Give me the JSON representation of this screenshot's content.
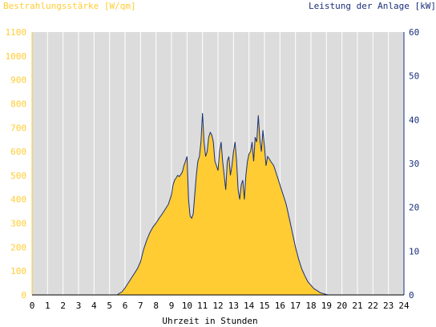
{
  "chart_data": {
    "type": "area",
    "title_left": "Bestrahlungsstärke [W/qm]",
    "title_right": "Leistung der Anlage [kW]",
    "xlabel": "Uhrzeit in Stunden",
    "xlim": [
      0,
      24
    ],
    "ylim_left": [
      0,
      1100
    ],
    "ylim_right": [
      0,
      60
    ],
    "x_ticks": [
      "0",
      "1",
      "2",
      "3",
      "4",
      "5",
      "6",
      "7",
      "8",
      "9",
      "10",
      "11",
      "12",
      "13",
      "14",
      "15",
      "16",
      "17",
      "18",
      "19",
      "20",
      "21",
      "22",
      "23",
      "24"
    ],
    "y_ticks_left": [
      "0",
      "100",
      "200",
      "300",
      "400",
      "500",
      "600",
      "700",
      "800",
      "900",
      "1000",
      "1100"
    ],
    "y_ticks_right": [
      "0",
      "10",
      "20",
      "30",
      "40",
      "50",
      "60"
    ],
    "colors": {
      "irradiance_fill": "#ffcc33",
      "power_line": "#1a2f7a",
      "plot_background": "#dcdcdc",
      "grid": "#ffffff",
      "left_axis": "#ffcc33",
      "right_axis": "#1a2f7a"
    },
    "grid": "vertical",
    "series": [
      {
        "axis": "left",
        "kind": "area",
        "x": [
          0,
          5.5,
          5.6,
          5.8,
          6.0,
          6.2,
          6.4,
          6.6,
          6.8,
          7.0,
          7.2,
          7.4,
          7.6,
          7.8,
          8.0,
          8.2,
          8.4,
          8.6,
          8.8,
          9.0,
          9.1,
          9.2,
          9.3,
          9.4,
          9.5,
          9.6,
          9.7,
          9.8,
          9.9,
          10.0,
          10.1,
          10.2,
          10.3,
          10.4,
          10.5,
          10.6,
          10.7,
          10.8,
          10.9,
          11.0,
          11.1,
          11.2,
          11.3,
          11.4,
          11.5,
          11.6,
          11.7,
          11.8,
          11.9,
          12.0,
          12.1,
          12.2,
          12.3,
          12.4,
          12.5,
          12.6,
          12.7,
          12.8,
          12.9,
          13.0,
          13.1,
          13.2,
          13.3,
          13.4,
          13.5,
          13.6,
          13.7,
          13.8,
          13.9,
          14.0,
          14.1,
          14.2,
          14.3,
          14.4,
          14.5,
          14.6,
          14.7,
          14.8,
          14.9,
          15.0,
          15.1,
          15.2,
          15.3,
          15.4,
          15.5,
          15.6,
          15.8,
          16.0,
          16.2,
          16.4,
          16.6,
          16.8,
          17.0,
          17.2,
          17.4,
          17.6,
          17.8,
          18.0,
          18.2,
          18.4,
          18.6,
          18.8,
          19.0,
          19.1,
          24
        ],
        "y": [
          0,
          0,
          5,
          12,
          30,
          50,
          70,
          90,
          110,
          140,
          190,
          230,
          260,
          285,
          300,
          320,
          340,
          360,
          380,
          420,
          460,
          480,
          490,
          500,
          495,
          505,
          515,
          540,
          560,
          580,
          400,
          330,
          320,
          340,
          420,
          500,
          560,
          580,
          640,
          720,
          640,
          580,
          600,
          660,
          680,
          670,
          640,
          560,
          540,
          520,
          600,
          640,
          560,
          500,
          440,
          560,
          580,
          500,
          540,
          600,
          640,
          560,
          440,
          400,
          460,
          480,
          400,
          500,
          560,
          590,
          600,
          640,
          560,
          660,
          640,
          770,
          650,
          600,
          690,
          620,
          540,
          580,
          570,
          560,
          550,
          540,
          500,
          460,
          420,
          380,
          320,
          260,
          200,
          150,
          110,
          80,
          55,
          40,
          25,
          18,
          10,
          5,
          2,
          0,
          0
        ]
      },
      {
        "axis": "right",
        "kind": "line",
        "x": [
          0,
          5.5,
          5.6,
          5.8,
          6.0,
          6.2,
          6.4,
          6.6,
          6.8,
          7.0,
          7.2,
          7.4,
          7.6,
          7.8,
          8.0,
          8.2,
          8.4,
          8.6,
          8.8,
          9.0,
          9.1,
          9.2,
          9.3,
          9.4,
          9.5,
          9.6,
          9.7,
          9.8,
          9.9,
          10.0,
          10.1,
          10.2,
          10.3,
          10.4,
          10.5,
          10.6,
          10.7,
          10.8,
          10.9,
          11.0,
          11.1,
          11.2,
          11.3,
          11.4,
          11.5,
          11.6,
          11.7,
          11.8,
          11.9,
          12.0,
          12.1,
          12.2,
          12.3,
          12.4,
          12.5,
          12.6,
          12.7,
          12.8,
          12.9,
          13.0,
          13.1,
          13.2,
          13.3,
          13.4,
          13.5,
          13.6,
          13.7,
          13.8,
          13.9,
          14.0,
          14.1,
          14.2,
          14.3,
          14.4,
          14.5,
          14.6,
          14.7,
          14.8,
          14.9,
          15.0,
          15.1,
          15.2,
          15.3,
          15.4,
          15.5,
          15.6,
          15.8,
          16.0,
          16.2,
          16.4,
          16.6,
          16.8,
          17.0,
          17.2,
          17.4,
          17.6,
          17.8,
          18.0,
          18.2,
          18.4,
          18.6,
          18.8,
          19.0,
          19.1,
          24
        ],
        "y": [
          0,
          0,
          0.3,
          0.7,
          1.6,
          2.7,
          3.8,
          4.9,
          6.0,
          7.6,
          10.4,
          12.5,
          14.2,
          15.5,
          16.4,
          17.5,
          18.5,
          19.6,
          20.7,
          22.9,
          25.1,
          26.2,
          26.7,
          27.3,
          27.0,
          27.5,
          28.1,
          29.5,
          30.5,
          31.6,
          21.8,
          18.0,
          17.5,
          18.5,
          22.9,
          27.3,
          30.5,
          31.6,
          34.9,
          41.5,
          34.9,
          31.6,
          32.7,
          36.0,
          37.1,
          36.5,
          34.9,
          30.5,
          29.5,
          28.4,
          32.7,
          34.9,
          30.5,
          27.3,
          24.0,
          30.5,
          31.6,
          27.3,
          29.5,
          32.7,
          34.9,
          30.5,
          24.0,
          21.8,
          25.1,
          26.2,
          21.8,
          27.3,
          30.5,
          32.2,
          32.7,
          34.9,
          30.5,
          36.0,
          34.9,
          41.0,
          35.5,
          32.7,
          37.6,
          33.8,
          29.5,
          31.6,
          31.1,
          30.5,
          30.0,
          29.5,
          27.3,
          25.1,
          22.9,
          20.7,
          17.5,
          14.2,
          10.9,
          8.2,
          6.0,
          4.4,
          3.0,
          2.2,
          1.4,
          1.0,
          0.5,
          0.3,
          0.1,
          0,
          0
        ]
      }
    ]
  }
}
